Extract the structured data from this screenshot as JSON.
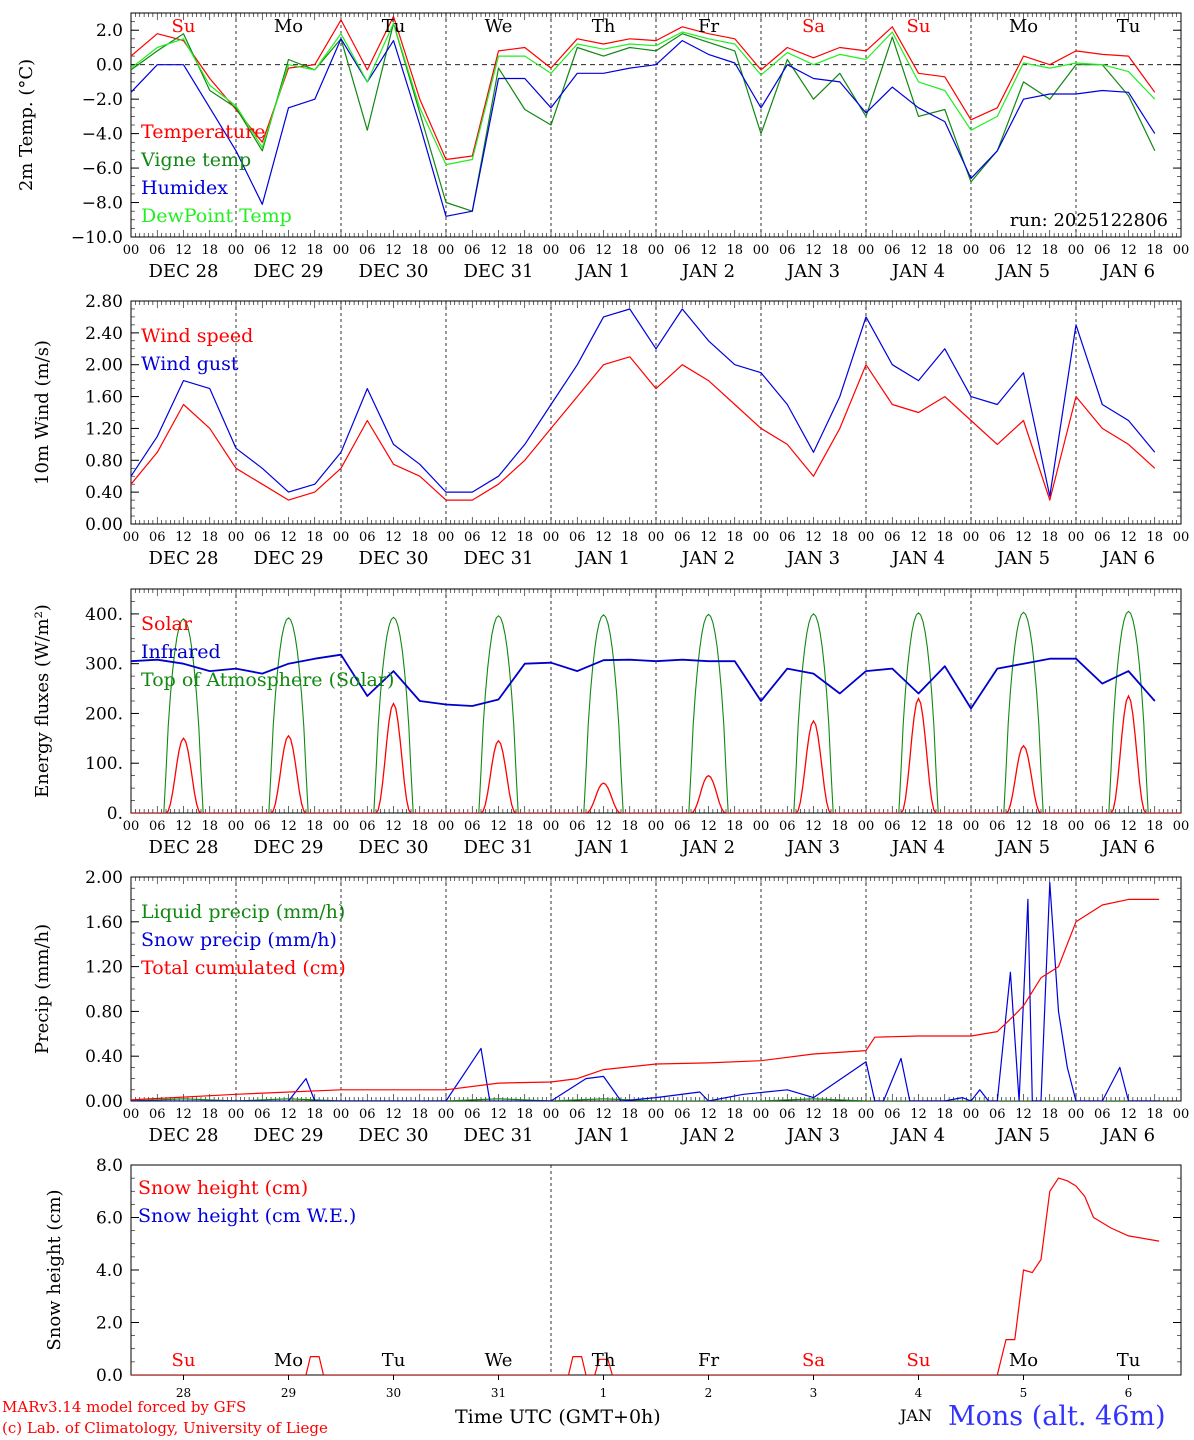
{
  "run_label": "run: 2025122806",
  "weekdays": [
    {
      "name": "Su",
      "color": "#ff0000"
    },
    {
      "name": "Mo",
      "color": "#000000"
    },
    {
      "name": "Tu",
      "color": "#000000"
    },
    {
      "name": "We",
      "color": "#000000"
    },
    {
      "name": "Th",
      "color": "#000000"
    },
    {
      "name": "Fr",
      "color": "#000000"
    },
    {
      "name": "Sa",
      "color": "#ff0000"
    },
    {
      "name": "Su",
      "color": "#ff0000"
    },
    {
      "name": "Mo",
      "color": "#000000"
    },
    {
      "name": "Tu",
      "color": "#000000"
    }
  ],
  "date_labels": [
    "DEC 28",
    "DEC 29",
    "DEC 30",
    "DEC 31",
    "JAN  1",
    "JAN  2",
    "JAN  3",
    "JAN  4",
    "JAN  5",
    "JAN  6"
  ],
  "hour_ticks": [
    "00",
    "06",
    "12",
    "18"
  ],
  "day_numbers": [
    "28",
    "29",
    "30",
    "31",
    "1",
    "2",
    "3",
    "4",
    "5",
    "6"
  ],
  "footer": {
    "credit_line1": "MARv3.14 model forced by GFS",
    "credit_line2": "(c) Lab. of Climatology, University of Liege",
    "xaxis_title": "Time UTC (GMT+0h)",
    "month_label": "JAN",
    "station": "Mons (alt. 46m)"
  },
  "chart_data": [
    {
      "type": "line",
      "ylabel": "2m Temp. (°C)",
      "ylim": [
        -10,
        3
      ],
      "yticks": [
        -10,
        -8,
        -6,
        -4,
        -2,
        0,
        2
      ],
      "ytick_labels": [
        "−10.0",
        "−8.0",
        "−6.0",
        "−4.0",
        "−2.0",
        "0.0",
        "2.0"
      ],
      "zero_line": true,
      "x_unit": "hours since DEC 28 00 UTC",
      "series": [
        {
          "name": "Temperature",
          "color": "#ff0000",
          "x": [
            0,
            6,
            12,
            18,
            24,
            30,
            36,
            42,
            48,
            54,
            60,
            66,
            72,
            78,
            84,
            90,
            96,
            102,
            108,
            114,
            120,
            126,
            132,
            138,
            144,
            150,
            156,
            162,
            168,
            174,
            180,
            186,
            192,
            198,
            204,
            210,
            216,
            222,
            228,
            234
          ],
          "y": [
            0.5,
            1.8,
            1.4,
            -0.8,
            -2.6,
            -4.5,
            -0.2,
            0,
            2.6,
            -0.3,
            2.8,
            -2,
            -5.5,
            -5.3,
            0.8,
            1,
            -0.2,
            1.5,
            1.2,
            1.5,
            1.4,
            2.2,
            1.8,
            1.5,
            -0.3,
            1,
            0.4,
            1,
            0.8,
            2.2,
            -0.5,
            -0.7,
            -3.2,
            -2.5,
            0.5,
            0,
            0.8,
            0.6,
            0.5,
            -1.6
          ]
        },
        {
          "name": "Vigne temp",
          "color": "#118811",
          "x": [
            0,
            6,
            12,
            18,
            24,
            30,
            36,
            42,
            48,
            54,
            60,
            66,
            72,
            78,
            84,
            90,
            96,
            102,
            108,
            114,
            120,
            126,
            132,
            138,
            144,
            150,
            156,
            162,
            168,
            174,
            180,
            186,
            192,
            198,
            204,
            210,
            216,
            222,
            228,
            234
          ],
          "y": [
            -0.3,
            0.8,
            1.8,
            -1.5,
            -2.5,
            -5,
            0.3,
            -0.3,
            1.5,
            -3.8,
            2.4,
            -2.8,
            -8,
            -8.5,
            -0.2,
            -2.6,
            -3.5,
            1,
            0.5,
            1,
            0.8,
            1.8,
            1.3,
            0.8,
            -4,
            0.3,
            -2,
            -0.5,
            -3,
            1.6,
            -3,
            -2.6,
            -6.8,
            -5,
            -1,
            -2,
            0,
            0,
            -1.8,
            -5
          ]
        },
        {
          "name": "Humidex",
          "color": "#0000dd",
          "x": [
            0,
            6,
            12,
            18,
            24,
            30,
            36,
            42,
            48,
            54,
            60,
            66,
            72,
            78,
            84,
            90,
            96,
            102,
            108,
            114,
            120,
            126,
            132,
            138,
            144,
            150,
            156,
            162,
            168,
            174,
            180,
            186,
            192,
            198,
            204,
            210,
            216,
            222,
            228,
            234
          ],
          "y": [
            -1.6,
            0,
            0,
            -2.5,
            -5,
            -8.1,
            -2.5,
            -2,
            1.5,
            -1,
            1.4,
            -3.5,
            -8.8,
            -8.5,
            -0.8,
            -0.8,
            -2.5,
            -0.5,
            -0.5,
            -0.2,
            0,
            1.4,
            0.6,
            0.1,
            -2.5,
            0,
            -0.8,
            -1,
            -2.8,
            -1.3,
            -2.5,
            -3.3,
            -6.6,
            -5,
            -2,
            -1.7,
            -1.7,
            -1.5,
            -1.6,
            -4
          ]
        },
        {
          "name": "DewPoint Temp",
          "color": "#22ee22",
          "x": [
            0,
            6,
            12,
            18,
            24,
            30,
            36,
            42,
            48,
            54,
            60,
            66,
            72,
            78,
            84,
            90,
            96,
            102,
            108,
            114,
            120,
            126,
            132,
            138,
            144,
            150,
            156,
            162,
            168,
            174,
            180,
            186,
            192,
            198,
            204,
            210,
            216,
            222,
            228,
            234
          ],
          "y": [
            -0.2,
            1,
            1.5,
            -1.2,
            -2.4,
            -4.8,
            0,
            -0.3,
            1.8,
            -1,
            2.4,
            -2.5,
            -5.8,
            -5.5,
            0.5,
            0.5,
            -0.5,
            1.2,
            0.9,
            1.2,
            1.1,
            1.9,
            1.5,
            1.2,
            -0.6,
            0.7,
            0,
            0.6,
            0.3,
            1.9,
            -1,
            -1.5,
            -3.8,
            -3,
            0.1,
            -0.2,
            0.1,
            0,
            -0.4,
            -2
          ]
        }
      ]
    },
    {
      "type": "line",
      "ylabel": "10m Wind (m/s)",
      "ylim": [
        0,
        2.8
      ],
      "yticks": [
        0,
        0.4,
        0.8,
        1.2,
        1.6,
        2.0,
        2.4,
        2.8
      ],
      "ytick_labels": [
        "0.00",
        "0.40",
        "0.80",
        "1.20",
        "1.60",
        "2.00",
        "2.40",
        "2.80"
      ],
      "x_unit": "hours since DEC 28 00 UTC",
      "series": [
        {
          "name": "Wind speed",
          "color": "#ff0000",
          "x": [
            0,
            6,
            12,
            18,
            24,
            30,
            36,
            42,
            48,
            54,
            60,
            66,
            72,
            78,
            84,
            90,
            96,
            102,
            108,
            114,
            120,
            126,
            132,
            138,
            144,
            150,
            156,
            162,
            168,
            174,
            180,
            186,
            192,
            198,
            204,
            210,
            216,
            222,
            228,
            234
          ],
          "y": [
            0.5,
            0.9,
            1.5,
            1.2,
            0.7,
            0.5,
            0.3,
            0.4,
            0.7,
            1.3,
            0.75,
            0.6,
            0.3,
            0.3,
            0.5,
            0.8,
            1.2,
            1.6,
            2.0,
            2.1,
            1.7,
            2.0,
            1.8,
            1.5,
            1.2,
            1.0,
            0.6,
            1.2,
            2.0,
            1.5,
            1.4,
            1.6,
            1.3,
            1.0,
            1.3,
            0.3,
            1.6,
            1.2,
            1.0,
            0.7
          ]
        },
        {
          "name": "Wind gust",
          "color": "#0000dd",
          "x": [
            0,
            6,
            12,
            18,
            24,
            30,
            36,
            42,
            48,
            54,
            60,
            66,
            72,
            78,
            84,
            90,
            96,
            102,
            108,
            114,
            120,
            126,
            132,
            138,
            144,
            150,
            156,
            162,
            168,
            174,
            180,
            186,
            192,
            198,
            204,
            210,
            216,
            222,
            228,
            234
          ],
          "y": [
            0.6,
            1.1,
            1.8,
            1.7,
            0.95,
            0.7,
            0.4,
            0.5,
            0.9,
            1.7,
            1.0,
            0.75,
            0.4,
            0.4,
            0.6,
            1.0,
            1.5,
            2.0,
            2.6,
            2.7,
            2.2,
            2.7,
            2.3,
            2.0,
            1.9,
            1.5,
            0.9,
            1.6,
            2.6,
            2.0,
            1.8,
            2.2,
            1.6,
            1.5,
            1.9,
            0.35,
            2.5,
            1.5,
            1.3,
            0.9
          ]
        }
      ]
    },
    {
      "type": "line",
      "ylabel": "Energy fluxes (W/m²)",
      "ylim": [
        0,
        450
      ],
      "yticks": [
        0,
        100,
        200,
        300,
        400
      ],
      "ytick_labels": [
        "0.",
        "100.",
        "200.",
        "300.",
        "400."
      ],
      "x_unit": "hours since DEC 28 00 UTC",
      "diurnal_peaks": {
        "toa_solar": [
          390,
          392,
          393,
          396,
          398,
          399,
          400,
          402,
          403,
          405
        ],
        "solar": [
          150,
          155,
          220,
          145,
          60,
          75,
          185,
          230,
          135,
          235
        ]
      },
      "series": [
        {
          "name": "Solar",
          "color": "#ff0000"
        },
        {
          "name": "Infrared",
          "color": "#0000cc",
          "x": [
            0,
            6,
            12,
            18,
            24,
            30,
            36,
            42,
            48,
            54,
            60,
            66,
            72,
            78,
            84,
            90,
            96,
            102,
            108,
            114,
            120,
            126,
            132,
            138,
            144,
            150,
            156,
            162,
            168,
            174,
            180,
            186,
            192,
            198,
            204,
            210,
            216,
            222,
            228,
            234
          ],
          "y": [
            305,
            308,
            300,
            285,
            290,
            280,
            300,
            310,
            318,
            235,
            285,
            225,
            218,
            215,
            228,
            300,
            302,
            285,
            307,
            308,
            305,
            308,
            305,
            305,
            225,
            290,
            280,
            240,
            285,
            290,
            240,
            295,
            210,
            290,
            300,
            310,
            310,
            260,
            285,
            225
          ]
        },
        {
          "name": "Top of Atmosphere (Solar)",
          "color": "#118811"
        }
      ]
    },
    {
      "type": "line",
      "ylabel": "Precip (mm/h)",
      "ylim": [
        0,
        2
      ],
      "yticks": [
        0,
        0.4,
        0.8,
        1.2,
        1.6,
        2.0
      ],
      "ytick_labels": [
        "0.00",
        "0.40",
        "0.80",
        "1.20",
        "1.60",
        "2.00"
      ],
      "x_unit": "hours since DEC 28 00 UTC",
      "series": [
        {
          "name": "Liquid precip (mm/h)",
          "color": "#118811",
          "x": [
            0,
            12,
            24,
            36,
            48,
            60,
            72,
            84,
            96,
            108,
            120,
            132,
            144,
            156,
            168,
            180,
            192,
            204,
            216,
            228,
            235
          ],
          "y": [
            0,
            0.02,
            0,
            0.02,
            0,
            0,
            0,
            0.02,
            0,
            0.02,
            0,
            0,
            0,
            0.02,
            0,
            0,
            0,
            0,
            0,
            0,
            0
          ]
        },
        {
          "name": "Snow precip (mm/h)",
          "color": "#0000dd",
          "x": [
            0,
            36,
            40,
            42,
            48,
            72,
            80,
            82,
            84,
            96,
            104,
            108,
            112,
            120,
            130,
            132,
            140,
            150,
            156,
            168,
            170,
            172,
            176,
            178,
            180,
            186,
            190,
            192,
            194,
            196,
            198,
            201,
            203,
            205,
            206,
            208,
            210,
            212,
            214,
            216,
            218,
            222,
            226,
            228,
            232,
            235
          ],
          "y": [
            0,
            0,
            0.2,
            0,
            0,
            0,
            0.47,
            0,
            0,
            0,
            0.2,
            0.22,
            0,
            0.03,
            0.08,
            0,
            0.06,
            0.1,
            0.03,
            0.35,
            0,
            0,
            0.38,
            0,
            0,
            0,
            0.03,
            0,
            0.1,
            0,
            0,
            1.15,
            0,
            1.8,
            0,
            0,
            1.95,
            0.8,
            0.3,
            0,
            0,
            0,
            0.3,
            0,
            0,
            0
          ]
        },
        {
          "name": "Total cumulated (cm)",
          "color": "#ff0000",
          "x": [
            0,
            24,
            48,
            72,
            84,
            96,
            102,
            108,
            120,
            132,
            144,
            156,
            168,
            170,
            180,
            192,
            198,
            202,
            204,
            208,
            210,
            212,
            216,
            222,
            228,
            235
          ],
          "y": [
            0.01,
            0.06,
            0.1,
            0.1,
            0.16,
            0.17,
            0.2,
            0.28,
            0.33,
            0.34,
            0.36,
            0.42,
            0.45,
            0.57,
            0.58,
            0.58,
            0.62,
            0.77,
            0.85,
            1.1,
            1.15,
            1.2,
            1.6,
            1.75,
            1.8,
            1.8
          ]
        }
      ]
    },
    {
      "type": "line",
      "ylabel": "Snow height (cm)",
      "ylim": [
        0,
        8
      ],
      "yticks": [
        0,
        2,
        4,
        6,
        8
      ],
      "ytick_labels": [
        "0.0",
        "2.0",
        "4.0",
        "6.0",
        "8.0"
      ],
      "x_unit": "hours since DEC 28 00 UTC",
      "series": [
        {
          "name": "Snow height (cm)",
          "color": "#ff0000",
          "x": [
            0,
            40,
            41,
            43,
            44,
            100,
            101,
            103,
            104,
            106,
            107,
            109,
            110,
            198,
            200,
            202,
            204,
            206,
            208,
            210,
            212,
            214,
            216,
            218,
            220,
            224,
            228,
            235
          ],
          "y": [
            0,
            0,
            0.7,
            0.7,
            0,
            0,
            0.7,
            0.7,
            0,
            0,
            0.6,
            0.6,
            0,
            0,
            1.35,
            1.35,
            4.0,
            3.9,
            4.4,
            7.0,
            7.5,
            7.4,
            7.2,
            6.8,
            6.0,
            5.6,
            5.3,
            5.1
          ]
        },
        {
          "name": "Snow height (cm W.E.)",
          "color": "#0000dd"
        }
      ]
    }
  ]
}
